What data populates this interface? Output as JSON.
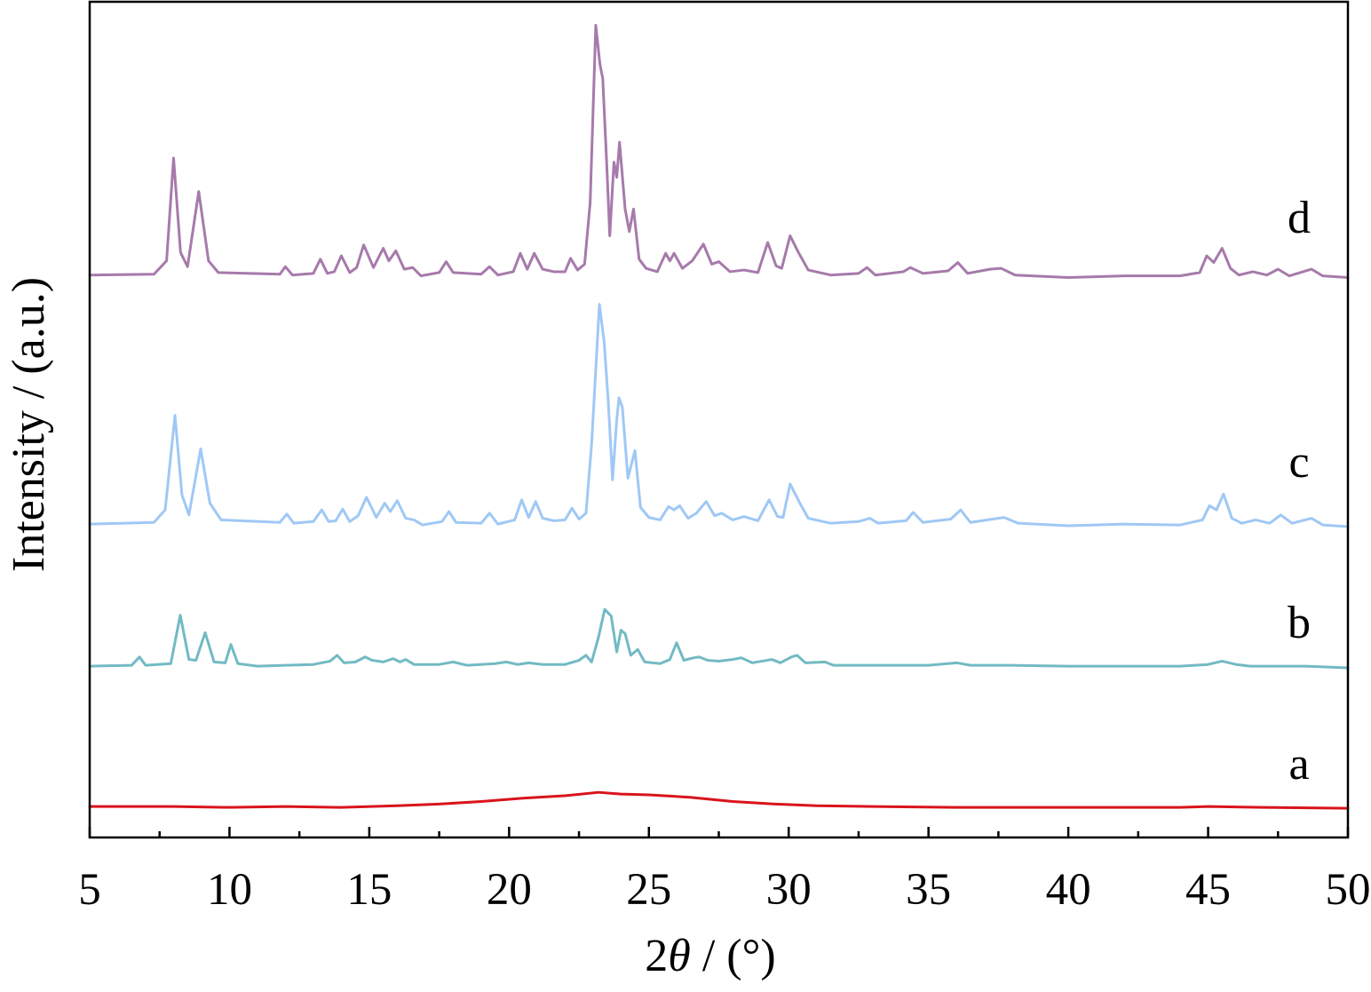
{
  "chart_data": {
    "type": "line",
    "title": "",
    "xlabel": "2θ / (°)",
    "ylabel": "Intensity / (a.u.)",
    "xlim": [
      5,
      50
    ],
    "ylim": [
      0,
      1000
    ],
    "x_ticks": [
      5,
      10,
      15,
      20,
      25,
      30,
      35,
      40,
      45,
      50
    ],
    "x_tick_labels": [
      "5",
      "10",
      "15",
      "20",
      "25",
      "30",
      "35",
      "40",
      "45",
      "50"
    ],
    "grid": false,
    "series": [
      {
        "name": "a",
        "color": "#d9141c",
        "points": [
          [
            5,
            37
          ],
          [
            8,
            37
          ],
          [
            10,
            36
          ],
          [
            12,
            37
          ],
          [
            14,
            36
          ],
          [
            16,
            38
          ],
          [
            17.5,
            40
          ],
          [
            19,
            43
          ],
          [
            20.5,
            47
          ],
          [
            22,
            50
          ],
          [
            23.2,
            54
          ],
          [
            24,
            52
          ],
          [
            25,
            51
          ],
          [
            26.5,
            48
          ],
          [
            28,
            43
          ],
          [
            29.5,
            40
          ],
          [
            31,
            38
          ],
          [
            33,
            37
          ],
          [
            36,
            36
          ],
          [
            40,
            36
          ],
          [
            44,
            36
          ],
          [
            45,
            37
          ],
          [
            47,
            36
          ],
          [
            50,
            35
          ]
        ]
      },
      {
        "name": "b",
        "color": "#72bac3",
        "points": [
          [
            5,
            205
          ],
          [
            6.5,
            206
          ],
          [
            6.78,
            216
          ],
          [
            7.0,
            206
          ],
          [
            7.9,
            208
          ],
          [
            8.24,
            266
          ],
          [
            8.55,
            213
          ],
          [
            8.8,
            212
          ],
          [
            9.13,
            245
          ],
          [
            9.45,
            210
          ],
          [
            9.85,
            209
          ],
          [
            10.05,
            231
          ],
          [
            10.3,
            208
          ],
          [
            11.0,
            205
          ],
          [
            12.0,
            206
          ],
          [
            13.0,
            207
          ],
          [
            13.6,
            211
          ],
          [
            13.85,
            218
          ],
          [
            14.1,
            209
          ],
          [
            14.5,
            210
          ],
          [
            14.85,
            216
          ],
          [
            15.1,
            212
          ],
          [
            15.5,
            210
          ],
          [
            15.85,
            214
          ],
          [
            16.1,
            210
          ],
          [
            16.3,
            213
          ],
          [
            16.6,
            207
          ],
          [
            17.5,
            207
          ],
          [
            18.0,
            210
          ],
          [
            18.5,
            206
          ],
          [
            19.5,
            208
          ],
          [
            19.9,
            210
          ],
          [
            20.3,
            207
          ],
          [
            20.7,
            209
          ],
          [
            21.2,
            207
          ],
          [
            22.0,
            207
          ],
          [
            22.5,
            212
          ],
          [
            22.75,
            218
          ],
          [
            22.95,
            210
          ],
          [
            23.2,
            240
          ],
          [
            23.42,
            273
          ],
          [
            23.65,
            265
          ],
          [
            23.85,
            222
          ],
          [
            24.0,
            248
          ],
          [
            24.15,
            244
          ],
          [
            24.35,
            218
          ],
          [
            24.6,
            225
          ],
          [
            24.85,
            210
          ],
          [
            25.4,
            208
          ],
          [
            25.75,
            213
          ],
          [
            25.99,
            233
          ],
          [
            26.25,
            212
          ],
          [
            26.6,
            215
          ],
          [
            26.8,
            216
          ],
          [
            27.1,
            212
          ],
          [
            27.5,
            211
          ],
          [
            28.0,
            213
          ],
          [
            28.3,
            215
          ],
          [
            28.7,
            209
          ],
          [
            29.4,
            213
          ],
          [
            29.7,
            209
          ],
          [
            30.1,
            216
          ],
          [
            30.3,
            218
          ],
          [
            30.6,
            209
          ],
          [
            31.3,
            210
          ],
          [
            31.6,
            206
          ],
          [
            33.0,
            206
          ],
          [
            35.0,
            206
          ],
          [
            36.0,
            209
          ],
          [
            36.5,
            206
          ],
          [
            38.0,
            206
          ],
          [
            40.0,
            205
          ],
          [
            44.0,
            205
          ],
          [
            45.0,
            207
          ],
          [
            45.5,
            211
          ],
          [
            46.0,
            207
          ],
          [
            46.5,
            205
          ],
          [
            48.5,
            205
          ],
          [
            50,
            203
          ]
        ]
      },
      {
        "name": "c",
        "color": "#9fc8f5",
        "points": [
          [
            5,
            375
          ],
          [
            7.3,
            377
          ],
          [
            7.7,
            392
          ],
          [
            8.05,
            505
          ],
          [
            8.3,
            410
          ],
          [
            8.55,
            386
          ],
          [
            8.97,
            465
          ],
          [
            9.3,
            400
          ],
          [
            9.7,
            380
          ],
          [
            11.8,
            377
          ],
          [
            12.05,
            387
          ],
          [
            12.3,
            376
          ],
          [
            13.0,
            378
          ],
          [
            13.3,
            392
          ],
          [
            13.55,
            378
          ],
          [
            13.8,
            379
          ],
          [
            14.05,
            393
          ],
          [
            14.3,
            378
          ],
          [
            14.6,
            385
          ],
          [
            14.9,
            407
          ],
          [
            15.25,
            383
          ],
          [
            15.55,
            400
          ],
          [
            15.75,
            390
          ],
          [
            16.0,
            403
          ],
          [
            16.3,
            382
          ],
          [
            16.6,
            380
          ],
          [
            16.9,
            374
          ],
          [
            17.6,
            378
          ],
          [
            17.85,
            390
          ],
          [
            18.1,
            377
          ],
          [
            19.0,
            376
          ],
          [
            19.3,
            388
          ],
          [
            19.6,
            375
          ],
          [
            20.2,
            380
          ],
          [
            20.45,
            404
          ],
          [
            20.7,
            383
          ],
          [
            20.95,
            402
          ],
          [
            21.2,
            382
          ],
          [
            21.6,
            379
          ],
          [
            22.0,
            380
          ],
          [
            22.25,
            394
          ],
          [
            22.5,
            381
          ],
          [
            22.75,
            388
          ],
          [
            22.95,
            470
          ],
          [
            23.23,
            638
          ],
          [
            23.4,
            593
          ],
          [
            23.55,
            520
          ],
          [
            23.7,
            428
          ],
          [
            23.85,
            500
          ],
          [
            23.93,
            526
          ],
          [
            24.05,
            515
          ],
          [
            24.25,
            430
          ],
          [
            24.5,
            463
          ],
          [
            24.7,
            395
          ],
          [
            25.0,
            383
          ],
          [
            25.4,
            380
          ],
          [
            25.7,
            396
          ],
          [
            25.9,
            392
          ],
          [
            26.1,
            397
          ],
          [
            26.4,
            382
          ],
          [
            26.7,
            388
          ],
          [
            27.05,
            402
          ],
          [
            27.35,
            385
          ],
          [
            27.6,
            388
          ],
          [
            28.0,
            380
          ],
          [
            28.4,
            384
          ],
          [
            28.9,
            379
          ],
          [
            29.3,
            404
          ],
          [
            29.6,
            384
          ],
          [
            29.8,
            383
          ],
          [
            30.05,
            423
          ],
          [
            30.4,
            400
          ],
          [
            30.7,
            382
          ],
          [
            31.5,
            376
          ],
          [
            32.5,
            378
          ],
          [
            32.9,
            382
          ],
          [
            33.2,
            376
          ],
          [
            34.2,
            379
          ],
          [
            34.45,
            389
          ],
          [
            34.8,
            377
          ],
          [
            35.8,
            381
          ],
          [
            36.15,
            392
          ],
          [
            36.5,
            377
          ],
          [
            37.3,
            381
          ],
          [
            37.7,
            383
          ],
          [
            38.2,
            376
          ],
          [
            40.0,
            373
          ],
          [
            42.0,
            375
          ],
          [
            44.0,
            374
          ],
          [
            44.8,
            380
          ],
          [
            45.05,
            397
          ],
          [
            45.3,
            392
          ],
          [
            45.55,
            411
          ],
          [
            45.85,
            382
          ],
          [
            46.2,
            376
          ],
          [
            46.7,
            380
          ],
          [
            47.2,
            376
          ],
          [
            47.6,
            386
          ],
          [
            48.0,
            376
          ],
          [
            48.7,
            382
          ],
          [
            49.1,
            374
          ],
          [
            50,
            372
          ]
        ]
      },
      {
        "name": "d",
        "color": "#a77aab",
        "points": [
          [
            5,
            673
          ],
          [
            7.3,
            674
          ],
          [
            7.75,
            690
          ],
          [
            8.0,
            813
          ],
          [
            8.25,
            700
          ],
          [
            8.5,
            683
          ],
          [
            8.9,
            773
          ],
          [
            9.25,
            690
          ],
          [
            9.6,
            676
          ],
          [
            11.8,
            674
          ],
          [
            12.0,
            683
          ],
          [
            12.25,
            673
          ],
          [
            13.0,
            675
          ],
          [
            13.25,
            692
          ],
          [
            13.5,
            675
          ],
          [
            13.75,
            677
          ],
          [
            14.0,
            696
          ],
          [
            14.3,
            676
          ],
          [
            14.55,
            682
          ],
          [
            14.8,
            709
          ],
          [
            15.15,
            682
          ],
          [
            15.5,
            705
          ],
          [
            15.7,
            690
          ],
          [
            15.95,
            702
          ],
          [
            16.25,
            680
          ],
          [
            16.55,
            682
          ],
          [
            16.85,
            672
          ],
          [
            17.5,
            676
          ],
          [
            17.75,
            689
          ],
          [
            18.0,
            676
          ],
          [
            19.0,
            674
          ],
          [
            19.3,
            683
          ],
          [
            19.6,
            673
          ],
          [
            20.15,
            677
          ],
          [
            20.4,
            699
          ],
          [
            20.65,
            680
          ],
          [
            20.9,
            699
          ],
          [
            21.2,
            680
          ],
          [
            21.6,
            677
          ],
          [
            22.0,
            677
          ],
          [
            22.2,
            693
          ],
          [
            22.45,
            679
          ],
          [
            22.7,
            686
          ],
          [
            22.9,
            760
          ],
          [
            23.1,
            972
          ],
          [
            23.25,
            925
          ],
          [
            23.35,
            908
          ],
          [
            23.5,
            800
          ],
          [
            23.6,
            720
          ],
          [
            23.75,
            808
          ],
          [
            23.85,
            790
          ],
          [
            23.95,
            832
          ],
          [
            24.15,
            752
          ],
          [
            24.3,
            725
          ],
          [
            24.45,
            752
          ],
          [
            24.65,
            692
          ],
          [
            24.9,
            681
          ],
          [
            25.3,
            677
          ],
          [
            25.6,
            699
          ],
          [
            25.75,
            690
          ],
          [
            25.9,
            699
          ],
          [
            26.2,
            681
          ],
          [
            26.55,
            690
          ],
          [
            26.95,
            710
          ],
          [
            27.25,
            686
          ],
          [
            27.5,
            689
          ],
          [
            27.9,
            677
          ],
          [
            28.4,
            679
          ],
          [
            28.9,
            676
          ],
          [
            29.25,
            712
          ],
          [
            29.55,
            684
          ],
          [
            29.75,
            681
          ],
          [
            30.05,
            720
          ],
          [
            30.35,
            700
          ],
          [
            30.7,
            679
          ],
          [
            31.5,
            673
          ],
          [
            32.5,
            675
          ],
          [
            32.8,
            682
          ],
          [
            33.1,
            673
          ],
          [
            34.1,
            677
          ],
          [
            34.35,
            682
          ],
          [
            34.8,
            675
          ],
          [
            35.7,
            678
          ],
          [
            36.05,
            688
          ],
          [
            36.4,
            675
          ],
          [
            37.2,
            680
          ],
          [
            37.6,
            681
          ],
          [
            38.1,
            673
          ],
          [
            40.0,
            670
          ],
          [
            42.0,
            672
          ],
          [
            44.0,
            672
          ],
          [
            44.7,
            676
          ],
          [
            44.95,
            696
          ],
          [
            45.2,
            688
          ],
          [
            45.5,
            705
          ],
          [
            45.8,
            681
          ],
          [
            46.1,
            673
          ],
          [
            46.6,
            677
          ],
          [
            47.1,
            673
          ],
          [
            47.5,
            680
          ],
          [
            47.9,
            672
          ],
          [
            48.7,
            680
          ],
          [
            49.1,
            672
          ],
          [
            50,
            670
          ]
        ]
      }
    ]
  }
}
